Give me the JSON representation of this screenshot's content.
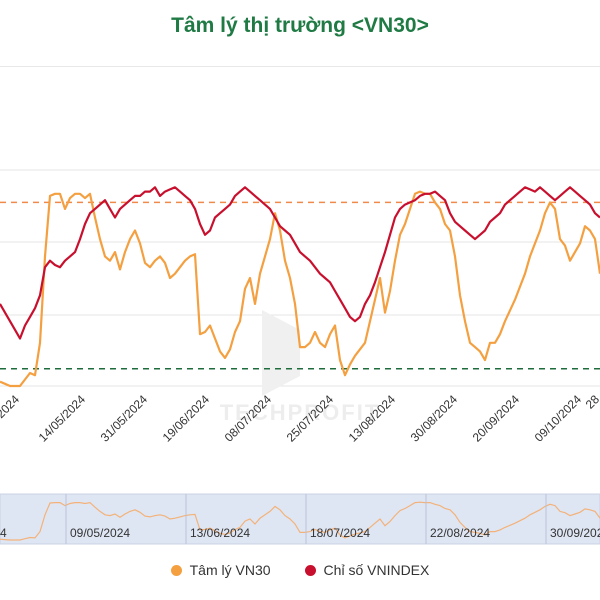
{
  "title": "Tâm lý thị trường <VN30>",
  "watermark": "TECHPROFIT",
  "colors": {
    "sentiment": "#f4a041",
    "index": "#c8102e",
    "upper_line": "#f08a4b",
    "lower_line": "#1e6b3c",
    "grid": "#e4e4e4",
    "navigator_fill": "#dfe6f3",
    "navigator_line": "#f3b27a"
  },
  "chart_data": {
    "type": "line",
    "title": "Tâm lý thị trường <VN30>",
    "xlabel": "",
    "ylabel": "",
    "x_tick_labels": [
      "14/05/2024",
      "31/05/2024",
      "19/06/2024",
      "08/07/2024",
      "25/07/2024",
      "13/08/2024",
      "30/08/2024",
      "20/09/2024",
      "09/10/2024"
    ],
    "x_tick_partial": [
      "/2024",
      "28"
    ],
    "navigator_tick_labels": [
      "09/05/2024",
      "13/06/2024",
      "18/07/2024",
      "22/08/2024",
      "30/09/2024"
    ],
    "navigator_tick_partial": [
      "4"
    ],
    "ylim": [
      0,
      100
    ],
    "grid": true,
    "legend": "bottom",
    "reference_lines": [
      {
        "value": 85,
        "style": "dashed",
        "color": "#f08a4b"
      },
      {
        "value": 8,
        "style": "dashed",
        "color": "#1e6b3c"
      }
    ],
    "series": [
      {
        "name": "Tâm lý VN30",
        "color": "#f4a041",
        "values": [
          2,
          1,
          0,
          0,
          0,
          3,
          6,
          5,
          20,
          60,
          88,
          89,
          89,
          82,
          87,
          89,
          89,
          87,
          89,
          78,
          68,
          60,
          58,
          62,
          54,
          62,
          68,
          72,
          66,
          57,
          55,
          58,
          60,
          57,
          50,
          52,
          55,
          58,
          60,
          61,
          24,
          25,
          28,
          22,
          16,
          13,
          17,
          25,
          30,
          45,
          50,
          38,
          52,
          60,
          68,
          80,
          72,
          58,
          50,
          38,
          18,
          18,
          20,
          25,
          20,
          18,
          24,
          28,
          12,
          5,
          10,
          14,
          17,
          20,
          30,
          40,
          50,
          34,
          44,
          58,
          70,
          75,
          82,
          89,
          90,
          89,
          89,
          85,
          82,
          75,
          72,
          60,
          42,
          30,
          20,
          18,
          16,
          12,
          20,
          20,
          24,
          30,
          35,
          40,
          46,
          52,
          60,
          66,
          72,
          80,
          85,
          82,
          68,
          65,
          58,
          62,
          66,
          74,
          72,
          68,
          52
        ]
      },
      {
        "name": "Chỉ số VNINDEX",
        "color": "#c8102e",
        "values": [
          38,
          34,
          30,
          26,
          22,
          28,
          32,
          36,
          42,
          55,
          58,
          56,
          55,
          58,
          60,
          62,
          68,
          75,
          80,
          82,
          84,
          86,
          82,
          78,
          82,
          84,
          86,
          88,
          88,
          90,
          90,
          92,
          88,
          90,
          91,
          92,
          90,
          88,
          86,
          82,
          75,
          70,
          72,
          78,
          80,
          82,
          84,
          88,
          90,
          92,
          90,
          88,
          86,
          84,
          82,
          78,
          74,
          72,
          70,
          66,
          62,
          60,
          58,
          55,
          52,
          50,
          48,
          44,
          40,
          36,
          32,
          30,
          32,
          38,
          42,
          48,
          55,
          62,
          70,
          78,
          82,
          84,
          85,
          86,
          88,
          89,
          89,
          90,
          88,
          86,
          80,
          76,
          74,
          72,
          70,
          68,
          70,
          72,
          76,
          78,
          80,
          84,
          86,
          88,
          90,
          92,
          91,
          90,
          92,
          90,
          88,
          86,
          88,
          90,
          92,
          90,
          88,
          86,
          84,
          80,
          78
        ]
      }
    ]
  }
}
